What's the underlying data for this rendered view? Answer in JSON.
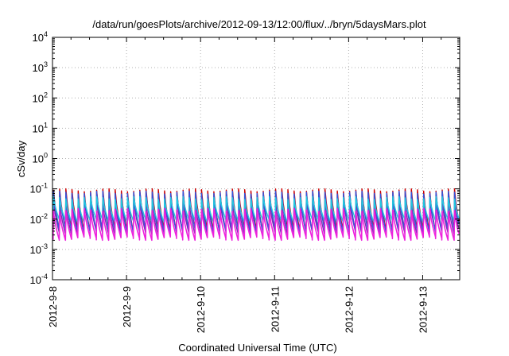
{
  "chart_data": {
    "type": "line",
    "title": "/data/run/goesPlots/archive/2012-09-13/12:00/flux/../bryn/5daysMars.plot",
    "xlabel": "Coordinated Universal Time (UTC)",
    "ylabel": "cSv/day",
    "yscale": "log",
    "ylim": [
      0.0001,
      10000
    ],
    "xlim": [
      "2012-09-08 00:00",
      "2012-09-13 12:00"
    ],
    "grid": true,
    "legend": "none",
    "x_ticks": [
      "2012-9-8",
      "2012-9-9",
      "2012-9-10",
      "2012-9-11",
      "2012-9-12",
      "2012-9-13"
    ],
    "y_ticks": [
      {
        "value": 0.0001,
        "base": "10",
        "exp": "-4"
      },
      {
        "value": 0.001,
        "base": "10",
        "exp": "-3"
      },
      {
        "value": 0.01,
        "base": "10",
        "exp": "-2"
      },
      {
        "value": 0.1,
        "base": "10",
        "exp": "-1"
      },
      {
        "value": 1,
        "base": "10",
        "exp": "0"
      },
      {
        "value": 10,
        "base": "10",
        "exp": "1"
      },
      {
        "value": 100,
        "base": "10",
        "exp": "2"
      },
      {
        "value": 1000,
        "base": "10",
        "exp": "3"
      },
      {
        "value": 10000,
        "base": "10",
        "exp": "4"
      }
    ],
    "pattern": {
      "cycle_hours": 2,
      "note": "sawtooth: sharp rise to peak then decay to trough every ~2 h"
    },
    "series": [
      {
        "color": "#cc0000",
        "peak": 0.09,
        "trough": 0.0045
      },
      {
        "color": "#3355dd",
        "peak": 0.075,
        "trough": 0.004
      },
      {
        "color": "#22c8e0",
        "peak": 0.05,
        "trough": 0.0085
      },
      {
        "color": "#7a2fb0",
        "peak": 0.04,
        "trough": 0.0035
      },
      {
        "color": "#ee22dd",
        "peak": 0.02,
        "trough": 0.0023
      }
    ]
  }
}
